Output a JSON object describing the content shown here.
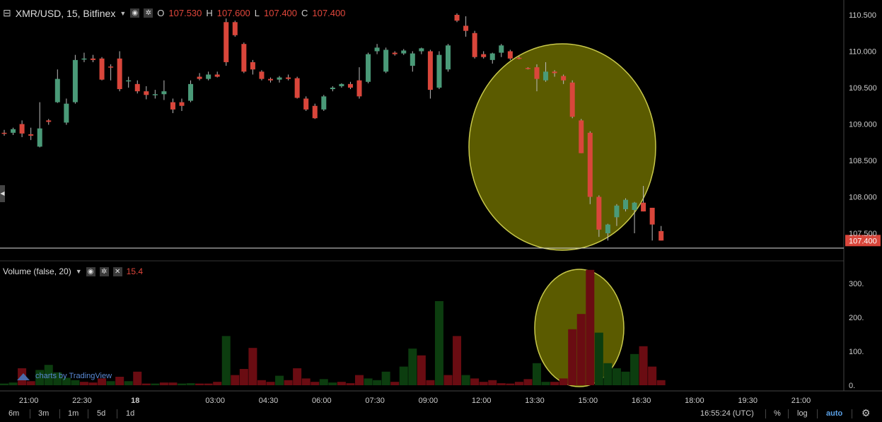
{
  "header": {
    "symbol": "XMR/USD, 15, Bitfinex",
    "ohlc": [
      {
        "k": "O",
        "v": "107.530"
      },
      {
        "k": "H",
        "v": "107.600"
      },
      {
        "k": "L",
        "v": "107.400"
      },
      {
        "k": "C",
        "v": "107.400"
      }
    ]
  },
  "volume_legend": {
    "title": "Volume (false, 20)",
    "value": "15.4"
  },
  "watermark": "charts by TradingView",
  "timeframes": [
    "6m",
    "3m",
    "1m",
    "5d",
    "1d"
  ],
  "bottom_right": {
    "time": "16:55:24 (UTC)",
    "percent": "%",
    "log": "log",
    "auto": "auto"
  },
  "colors": {
    "up": "#4a9a78",
    "down": "#d9463b",
    "vol_up": "#0c3d0f",
    "vol_down": "#6a0c12",
    "ellipse_fill": "#7a7a00",
    "ellipse_stroke": "#c8c84a",
    "bg": "#000000"
  },
  "chart_data": [
    {
      "type": "candlestick",
      "title": "XMR/USD, 15, Bitfinex",
      "ylim": [
        107.3,
        110.6
      ],
      "y_ticks": [
        "110.500",
        "110.000",
        "109.500",
        "109.000",
        "108.500",
        "108.000",
        "107.500"
      ],
      "last_price": "107.400",
      "x_ticks": [
        "21:00",
        "22:30",
        "18",
        "03:00",
        "04:30",
        "06:00",
        "07:30",
        "09:00",
        "12:00",
        "13:30",
        "15:00",
        "16:30",
        "18:00",
        "19:30",
        "21:00"
      ],
      "candles": [
        {
          "i": 0,
          "o": 108.88,
          "h": 108.92,
          "l": 108.84,
          "c": 108.87
        },
        {
          "i": 1,
          "o": 108.88,
          "h": 108.95,
          "l": 108.85,
          "c": 108.93
        },
        {
          "i": 2,
          "o": 109.0,
          "h": 109.05,
          "l": 108.82,
          "c": 108.87
        },
        {
          "i": 3,
          "o": 108.86,
          "h": 108.95,
          "l": 108.78,
          "c": 108.84
        },
        {
          "i": 4,
          "o": 108.69,
          "h": 109.3,
          "l": 108.68,
          "c": 108.94
        },
        {
          "i": 5,
          "o": 109.05,
          "h": 109.07,
          "l": 108.99,
          "c": 109.03
        },
        {
          "i": 6,
          "o": 109.3,
          "h": 109.75,
          "l": 109.29,
          "c": 109.62
        },
        {
          "i": 7,
          "o": 109.02,
          "h": 109.35,
          "l": 108.99,
          "c": 109.28
        },
        {
          "i": 8,
          "o": 109.3,
          "h": 109.95,
          "l": 109.28,
          "c": 109.88
        },
        {
          "i": 9,
          "o": 109.9,
          "h": 109.98,
          "l": 109.85,
          "c": 109.9
        },
        {
          "i": 10,
          "o": 109.9,
          "h": 109.95,
          "l": 109.85,
          "c": 109.88
        },
        {
          "i": 11,
          "o": 109.9,
          "h": 109.92,
          "l": 109.6,
          "c": 109.61
        },
        {
          "i": 12,
          "o": 109.79,
          "h": 109.82,
          "l": 109.6,
          "c": 109.78
        },
        {
          "i": 13,
          "o": 109.9,
          "h": 110.0,
          "l": 109.45,
          "c": 109.48
        },
        {
          "i": 14,
          "o": 109.6,
          "h": 109.65,
          "l": 109.5,
          "c": 109.6
        },
        {
          "i": 15,
          "o": 109.55,
          "h": 109.6,
          "l": 109.42,
          "c": 109.45
        },
        {
          "i": 16,
          "o": 109.45,
          "h": 109.52,
          "l": 109.34,
          "c": 109.4
        },
        {
          "i": 17,
          "o": 109.4,
          "h": 109.47,
          "l": 109.35,
          "c": 109.41
        },
        {
          "i": 18,
          "o": 109.41,
          "h": 109.6,
          "l": 109.33,
          "c": 109.45
        },
        {
          "i": 19,
          "o": 109.3,
          "h": 109.35,
          "l": 109.15,
          "c": 109.2
        },
        {
          "i": 20,
          "o": 109.3,
          "h": 109.35,
          "l": 109.18,
          "c": 109.25
        },
        {
          "i": 21,
          "o": 109.32,
          "h": 109.6,
          "l": 109.3,
          "c": 109.55
        },
        {
          "i": 22,
          "o": 109.65,
          "h": 109.7,
          "l": 109.6,
          "c": 109.62
        },
        {
          "i": 23,
          "o": 109.62,
          "h": 109.72,
          "l": 109.6,
          "c": 109.68
        },
        {
          "i": 24,
          "o": 109.68,
          "h": 109.72,
          "l": 109.64,
          "c": 109.65
        },
        {
          "i": 25,
          "o": 110.4,
          "h": 110.45,
          "l": 109.8,
          "c": 109.85
        },
        {
          "i": 26,
          "o": 110.4,
          "h": 110.42,
          "l": 110.2,
          "c": 110.22
        },
        {
          "i": 27,
          "o": 110.1,
          "h": 110.12,
          "l": 109.7,
          "c": 109.72
        },
        {
          "i": 28,
          "o": 109.85,
          "h": 109.88,
          "l": 109.68,
          "c": 109.75
        },
        {
          "i": 29,
          "o": 109.72,
          "h": 109.74,
          "l": 109.6,
          "c": 109.62
        },
        {
          "i": 30,
          "o": 109.62,
          "h": 109.64,
          "l": 109.57,
          "c": 109.6
        },
        {
          "i": 31,
          "o": 109.61,
          "h": 109.66,
          "l": 109.57,
          "c": 109.64
        },
        {
          "i": 32,
          "o": 109.64,
          "h": 109.68,
          "l": 109.6,
          "c": 109.62
        },
        {
          "i": 33,
          "o": 109.63,
          "h": 109.65,
          "l": 109.35,
          "c": 109.36
        },
        {
          "i": 34,
          "o": 109.35,
          "h": 109.38,
          "l": 109.18,
          "c": 109.2
        },
        {
          "i": 35,
          "o": 109.25,
          "h": 109.28,
          "l": 109.07,
          "c": 109.08
        },
        {
          "i": 36,
          "o": 109.2,
          "h": 109.4,
          "l": 109.18,
          "c": 109.38
        },
        {
          "i": 37,
          "o": 109.48,
          "h": 109.52,
          "l": 109.45,
          "c": 109.5
        },
        {
          "i": 38,
          "o": 109.52,
          "h": 109.56,
          "l": 109.5,
          "c": 109.55
        },
        {
          "i": 39,
          "o": 109.55,
          "h": 109.58,
          "l": 109.48,
          "c": 109.5
        },
        {
          "i": 40,
          "o": 109.6,
          "h": 109.78,
          "l": 109.35,
          "c": 109.38
        },
        {
          "i": 41,
          "o": 109.58,
          "h": 109.98,
          "l": 109.56,
          "c": 109.96
        },
        {
          "i": 42,
          "o": 110.0,
          "h": 110.1,
          "l": 109.96,
          "c": 110.05
        },
        {
          "i": 43,
          "o": 109.72,
          "h": 110.05,
          "l": 109.7,
          "c": 110.02
        },
        {
          "i": 44,
          "o": 109.98,
          "h": 110.0,
          "l": 109.94,
          "c": 109.96
        },
        {
          "i": 45,
          "o": 109.97,
          "h": 110.03,
          "l": 109.95,
          "c": 110.01
        },
        {
          "i": 46,
          "o": 109.8,
          "h": 110.0,
          "l": 109.72,
          "c": 109.97
        },
        {
          "i": 47,
          "o": 110.0,
          "h": 110.05,
          "l": 109.96,
          "c": 110.04
        },
        {
          "i": 48,
          "o": 110.0,
          "h": 110.02,
          "l": 109.35,
          "c": 109.47
        },
        {
          "i": 49,
          "o": 109.5,
          "h": 110.0,
          "l": 109.48,
          "c": 109.95
        },
        {
          "i": 50,
          "o": 109.75,
          "h": 110.1,
          "l": 109.72,
          "c": 110.08
        },
        {
          "i": 51,
          "o": 110.5,
          "h": 110.52,
          "l": 110.4,
          "c": 110.42
        },
        {
          "i": 52,
          "o": 110.35,
          "h": 110.48,
          "l": 110.2,
          "c": 110.28
        },
        {
          "i": 53,
          "o": 110.25,
          "h": 110.28,
          "l": 109.9,
          "c": 109.92
        },
        {
          "i": 54,
          "o": 109.96,
          "h": 110.0,
          "l": 109.9,
          "c": 109.92
        },
        {
          "i": 55,
          "o": 109.88,
          "h": 109.98,
          "l": 109.83,
          "c": 109.97
        },
        {
          "i": 56,
          "o": 109.98,
          "h": 110.1,
          "l": 109.92,
          "c": 110.08
        },
        {
          "i": 57,
          "o": 110.0,
          "h": 110.02,
          "l": 109.88,
          "c": 109.9
        },
        {
          "i": 58,
          "o": 109.91,
          "h": 109.93,
          "l": 109.89,
          "c": 109.9
        },
        {
          "i": 59,
          "o": 109.77,
          "h": 109.78,
          "l": 109.75,
          "c": 109.76
        },
        {
          "i": 60,
          "o": 109.78,
          "h": 109.82,
          "l": 109.45,
          "c": 109.62
        },
        {
          "i": 61,
          "o": 109.6,
          "h": 109.85,
          "l": 109.58,
          "c": 109.72
        },
        {
          "i": 62,
          "o": 109.72,
          "h": 109.74,
          "l": 109.65,
          "c": 109.7
        },
        {
          "i": 63,
          "o": 109.66,
          "h": 109.68,
          "l": 109.55,
          "c": 109.6
        },
        {
          "i": 64,
          "o": 109.57,
          "h": 109.6,
          "l": 109.08,
          "c": 109.1
        },
        {
          "i": 65,
          "o": 109.05,
          "h": 109.07,
          "l": 108.6,
          "c": 108.6
        },
        {
          "i": 66,
          "o": 108.88,
          "h": 108.9,
          "l": 107.9,
          "c": 108.0
        },
        {
          "i": 67,
          "o": 108.0,
          "h": 108.02,
          "l": 107.45,
          "c": 107.55
        },
        {
          "i": 68,
          "o": 107.5,
          "h": 107.63,
          "l": 107.4,
          "c": 107.62
        },
        {
          "i": 69,
          "o": 107.72,
          "h": 107.9,
          "l": 107.6,
          "c": 107.88
        },
        {
          "i": 70,
          "o": 107.83,
          "h": 107.98,
          "l": 107.8,
          "c": 107.96
        },
        {
          "i": 71,
          "o": 107.82,
          "h": 107.93,
          "l": 107.5,
          "c": 107.92
        },
        {
          "i": 72,
          "o": 107.92,
          "h": 108.15,
          "l": 107.8,
          "c": 107.8
        },
        {
          "i": 73,
          "o": 107.85,
          "h": 107.85,
          "l": 107.4,
          "c": 107.62
        },
        {
          "i": 74,
          "o": 107.53,
          "h": 107.6,
          "l": 107.4,
          "c": 107.4
        }
      ]
    },
    {
      "type": "bar",
      "title": "Volume (false, 20)",
      "ylim": [
        0,
        340
      ],
      "y_ticks": [
        "300.",
        "200.",
        "100.",
        "0."
      ],
      "bars": [
        {
          "i": 0,
          "v": 5,
          "dir": "up"
        },
        {
          "i": 1,
          "v": 8,
          "dir": "up"
        },
        {
          "i": 2,
          "v": 50,
          "dir": "down"
        },
        {
          "i": 3,
          "v": 12,
          "dir": "down"
        },
        {
          "i": 4,
          "v": 45,
          "dir": "up"
        },
        {
          "i": 5,
          "v": 60,
          "dir": "up"
        },
        {
          "i": 6,
          "v": 38,
          "dir": "up"
        },
        {
          "i": 7,
          "v": 22,
          "dir": "up"
        },
        {
          "i": 8,
          "v": 15,
          "dir": "up"
        },
        {
          "i": 9,
          "v": 10,
          "dir": "down"
        },
        {
          "i": 10,
          "v": 8,
          "dir": "down"
        },
        {
          "i": 11,
          "v": 20,
          "dir": "down"
        },
        {
          "i": 12,
          "v": 12,
          "dir": "up"
        },
        {
          "i": 13,
          "v": 25,
          "dir": "down"
        },
        {
          "i": 14,
          "v": 12,
          "dir": "up"
        },
        {
          "i": 15,
          "v": 40,
          "dir": "down"
        },
        {
          "i": 16,
          "v": 5,
          "dir": "down"
        },
        {
          "i": 17,
          "v": 5,
          "dir": "up"
        },
        {
          "i": 18,
          "v": 8,
          "dir": "down"
        },
        {
          "i": 19,
          "v": 8,
          "dir": "down"
        },
        {
          "i": 20,
          "v": 5,
          "dir": "up"
        },
        {
          "i": 21,
          "v": 6,
          "dir": "up"
        },
        {
          "i": 22,
          "v": 5,
          "dir": "down"
        },
        {
          "i": 23,
          "v": 5,
          "dir": "down"
        },
        {
          "i": 24,
          "v": 10,
          "dir": "down"
        },
        {
          "i": 25,
          "v": 145,
          "dir": "up"
        },
        {
          "i": 26,
          "v": 30,
          "dir": "down"
        },
        {
          "i": 27,
          "v": 48,
          "dir": "down"
        },
        {
          "i": 28,
          "v": 110,
          "dir": "down"
        },
        {
          "i": 29,
          "v": 15,
          "dir": "down"
        },
        {
          "i": 30,
          "v": 10,
          "dir": "down"
        },
        {
          "i": 31,
          "v": 28,
          "dir": "up"
        },
        {
          "i": 32,
          "v": 15,
          "dir": "down"
        },
        {
          "i": 33,
          "v": 50,
          "dir": "down"
        },
        {
          "i": 34,
          "v": 20,
          "dir": "down"
        },
        {
          "i": 35,
          "v": 10,
          "dir": "down"
        },
        {
          "i": 36,
          "v": 18,
          "dir": "up"
        },
        {
          "i": 37,
          "v": 8,
          "dir": "up"
        },
        {
          "i": 38,
          "v": 10,
          "dir": "down"
        },
        {
          "i": 39,
          "v": 6,
          "dir": "down"
        },
        {
          "i": 40,
          "v": 30,
          "dir": "down"
        },
        {
          "i": 41,
          "v": 20,
          "dir": "up"
        },
        {
          "i": 42,
          "v": 15,
          "dir": "up"
        },
        {
          "i": 43,
          "v": 40,
          "dir": "up"
        },
        {
          "i": 44,
          "v": 10,
          "dir": "down"
        },
        {
          "i": 45,
          "v": 55,
          "dir": "up"
        },
        {
          "i": 46,
          "v": 108,
          "dir": "up"
        },
        {
          "i": 47,
          "v": 88,
          "dir": "down"
        },
        {
          "i": 48,
          "v": 15,
          "dir": "down"
        },
        {
          "i": 49,
          "v": 248,
          "dir": "up"
        },
        {
          "i": 50,
          "v": 30,
          "dir": "down"
        },
        {
          "i": 51,
          "v": 145,
          "dir": "down"
        },
        {
          "i": 52,
          "v": 30,
          "dir": "up"
        },
        {
          "i": 53,
          "v": 20,
          "dir": "down"
        },
        {
          "i": 54,
          "v": 10,
          "dir": "down"
        },
        {
          "i": 55,
          "v": 15,
          "dir": "down"
        },
        {
          "i": 56,
          "v": 6,
          "dir": "down"
        },
        {
          "i": 57,
          "v": 5,
          "dir": "down"
        },
        {
          "i": 58,
          "v": 10,
          "dir": "down"
        },
        {
          "i": 59,
          "v": 18,
          "dir": "down"
        },
        {
          "i": 60,
          "v": 65,
          "dir": "up"
        },
        {
          "i": 61,
          "v": 10,
          "dir": "up"
        },
        {
          "i": 62,
          "v": 10,
          "dir": "down"
        },
        {
          "i": 63,
          "v": 20,
          "dir": "down"
        },
        {
          "i": 64,
          "v": 165,
          "dir": "down"
        },
        {
          "i": 65,
          "v": 210,
          "dir": "down"
        },
        {
          "i": 66,
          "v": 340,
          "dir": "down"
        },
        {
          "i": 67,
          "v": 155,
          "dir": "up"
        },
        {
          "i": 68,
          "v": 65,
          "dir": "up"
        },
        {
          "i": 69,
          "v": 50,
          "dir": "up"
        },
        {
          "i": 70,
          "v": 40,
          "dir": "up"
        },
        {
          "i": 71,
          "v": 92,
          "dir": "up"
        },
        {
          "i": 72,
          "v": 115,
          "dir": "down"
        },
        {
          "i": 73,
          "v": 55,
          "dir": "down"
        },
        {
          "i": 74,
          "v": 15,
          "dir": "down"
        }
      ]
    }
  ]
}
